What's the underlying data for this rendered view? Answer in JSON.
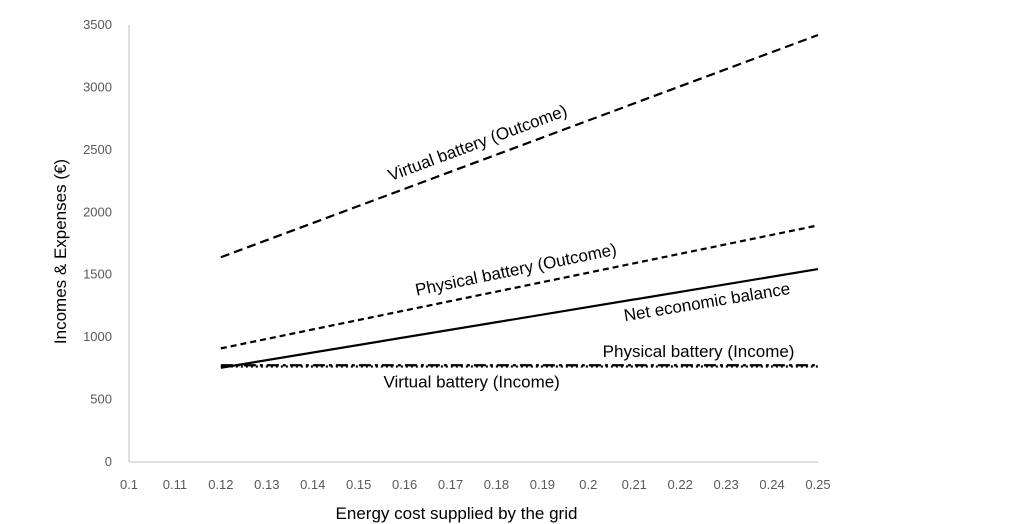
{
  "chart_data": {
    "type": "line",
    "title": "",
    "xlabel": "Energy cost supplied by the grid",
    "ylabel": "Incomes & Expenses (€)",
    "xlim": [
      0.1,
      0.25
    ],
    "ylim": [
      0,
      3500
    ],
    "xticks": [
      "0.1",
      "0.11",
      "0.12",
      "0.13",
      "0.14",
      "0.15",
      "0.16",
      "0.17",
      "0.18",
      "0.19",
      "0.2",
      "0.21",
      "0.22",
      "0.23",
      "0.24",
      "0.25"
    ],
    "yticks": [
      "0",
      "500",
      "1000",
      "1500",
      "2000",
      "2500",
      "3000",
      "3500"
    ],
    "grid": false,
    "legend": "none",
    "x": [
      0.12,
      0.25
    ],
    "series": [
      {
        "name": "Virtual battery (Outcome)",
        "style": "long-dash",
        "values": [
          1640,
          3420
        ]
      },
      {
        "name": "Physical battery (Outcome)",
        "style": "short-dash",
        "values": [
          910,
          1895
        ]
      },
      {
        "name": "Net economic balance",
        "style": "solid",
        "values": [
          755,
          1545
        ]
      },
      {
        "name": "Physical battery (Income)",
        "style": "dash-dot",
        "values": [
          775,
          775
        ]
      },
      {
        "name": "Virtual battery (Income)",
        "style": "dotted",
        "values": [
          765,
          765
        ]
      }
    ],
    "annotations": [
      {
        "text": "Virtual battery (Outcome)",
        "series": 0
      },
      {
        "text": "Physical battery (Outcome)",
        "series": 1
      },
      {
        "text": "Net economic balance",
        "series": 2
      },
      {
        "text": "Physical battery (Income)",
        "series": 3
      },
      {
        "text": "Virtual battery (Income)",
        "series": 4
      }
    ],
    "colors": {
      "line": "#000000",
      "axis": "#bfbfbf",
      "tick_label": "#595959"
    }
  }
}
